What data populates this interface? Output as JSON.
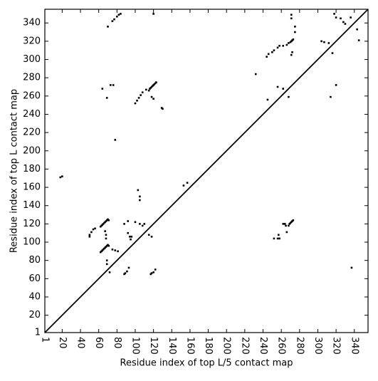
{
  "chart_data": {
    "type": "scatter",
    "xlabel": "Residue index of top L/5 contact map",
    "ylabel": "Residue index of top L contact map",
    "color": "#000000",
    "xlim": [
      1,
      355
    ],
    "ylim": [
      1,
      355
    ],
    "xticks": [
      1,
      20,
      40,
      60,
      80,
      100,
      120,
      140,
      160,
      180,
      200,
      220,
      240,
      260,
      280,
      300,
      320,
      340
    ],
    "yticks": [
      1,
      20,
      40,
      60,
      80,
      100,
      120,
      140,
      160,
      180,
      200,
      220,
      240,
      260,
      280,
      300,
      320,
      340
    ],
    "x": [
      62,
      63,
      64,
      65,
      66,
      67,
      68,
      69,
      70,
      71,
      62,
      63,
      64,
      65,
      66,
      67,
      68,
      69,
      70,
      71,
      50,
      50,
      52,
      54,
      56,
      67,
      68,
      68,
      69,
      69,
      72,
      75,
      78,
      81,
      88,
      89,
      91,
      93,
      88,
      92,
      92,
      94,
      95,
      96,
      100,
      105,
      108,
      110,
      115,
      118,
      117,
      118,
      120,
      122,
      100,
      102,
      104,
      106,
      108,
      112,
      115,
      116,
      117,
      118,
      119,
      120,
      121,
      122,
      123,
      118,
      120,
      130,
      129,
      73,
      76,
      69,
      64,
      78,
      18,
      20,
      70,
      75,
      77,
      80,
      82,
      84,
      120,
      103,
      105,
      105,
      153,
      157,
      232,
      245,
      244,
      246,
      250,
      252,
      256,
      258,
      262,
      266,
      268,
      270,
      271,
      272,
      273,
      271,
      271,
      272,
      271,
      275,
      275,
      304,
      307,
      312,
      318,
      320,
      325,
      328,
      330,
      336,
      345,
      268,
      269,
      270,
      271,
      272,
      273,
      262,
      265,
      252,
      256,
      258,
      257,
      266,
      256,
      262,
      268,
      264,
      316,
      320,
      314,
      337,
      343
    ],
    "values": [
      89,
      90,
      91,
      92,
      93,
      94,
      95,
      96,
      97,
      96,
      117,
      118,
      119,
      120,
      121,
      122,
      123,
      124,
      125,
      124,
      106,
      108,
      111,
      114,
      115,
      112,
      108,
      104,
      80,
      76,
      67,
      92,
      91,
      90,
      65,
      66,
      68,
      72,
      120,
      123,
      110,
      106,
      103,
      106,
      122,
      120,
      118,
      120,
      108,
      106,
      65,
      66,
      67,
      70,
      252,
      255,
      258,
      261,
      264,
      267,
      266,
      268,
      269,
      270,
      271,
      272,
      273,
      274,
      275,
      259,
      257,
      246,
      247,
      272,
      272,
      258,
      268,
      212,
      171,
      172,
      336,
      342,
      344,
      347,
      349,
      350,
      350,
      157,
      150,
      146,
      162,
      165,
      284,
      256,
      303,
      306,
      308,
      310,
      313,
      315,
      315,
      316,
      318,
      319,
      320,
      321,
      322,
      349,
      345,
      308,
      305,
      330,
      336,
      320,
      319,
      318,
      350,
      346,
      345,
      341,
      339,
      346,
      321,
      118,
      120,
      121,
      122,
      123,
      124,
      120,
      118,
      104,
      104,
      104,
      108,
      111,
      270,
      268,
      259,
      120,
      307,
      272,
      259,
      72,
      333
    ]
  }
}
